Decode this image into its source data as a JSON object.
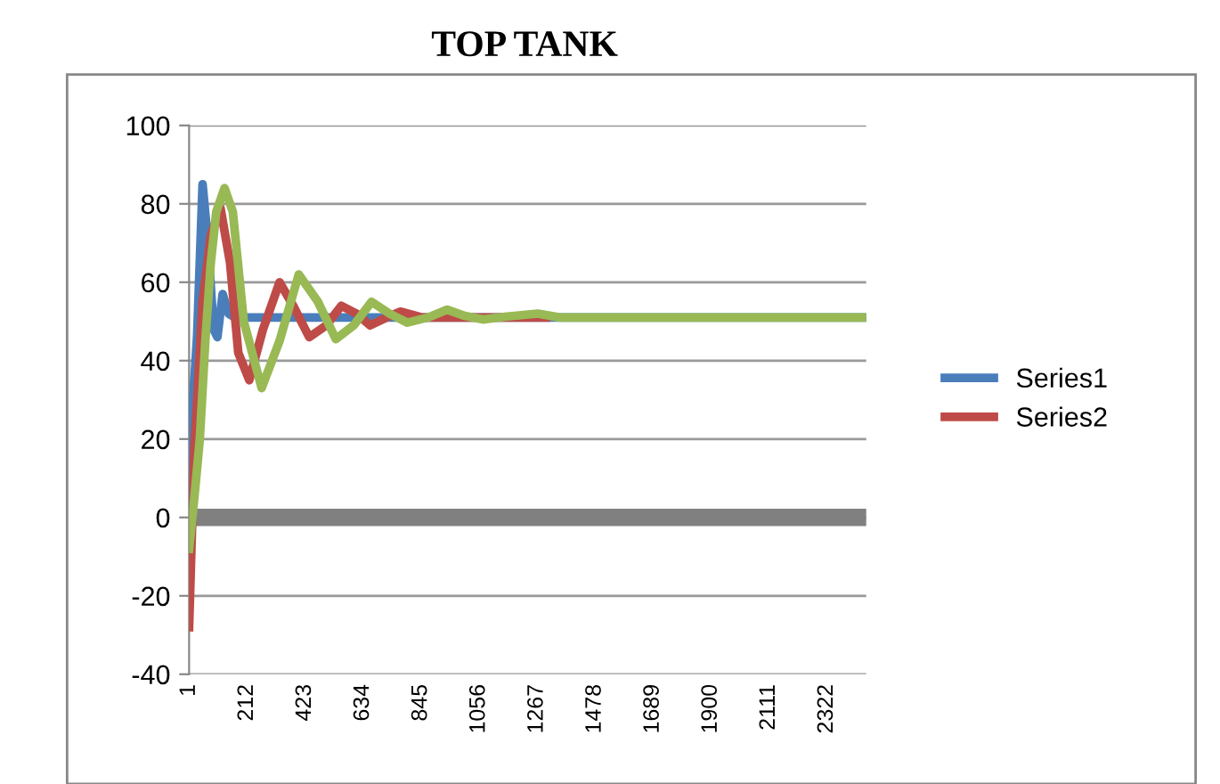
{
  "chart_data": {
    "type": "line",
    "title": "TOP TANK",
    "xlim": [
      1,
      2465
    ],
    "xticks": [
      1,
      212,
      423,
      634,
      845,
      1056,
      1267,
      1478,
      1689,
      1900,
      2111,
      2322
    ],
    "ylim": [
      -40,
      100
    ],
    "yticks": [
      -40,
      -20,
      0,
      20,
      40,
      60,
      80,
      100
    ],
    "grid": "y",
    "legend": "right",
    "marker": "none",
    "line_style": "solid",
    "ref_lines": [
      {
        "axis": "y",
        "value": 0,
        "color": "#808080"
      }
    ],
    "series": [
      {
        "name": "Series1",
        "color": "#4a7ebb",
        "x": [
          1,
          15,
          30,
          50,
          70,
          90,
          104,
          123,
          145,
          168,
          2465
        ],
        "values": [
          0,
          30,
          46,
          85,
          70,
          48,
          46,
          57,
          52,
          51,
          51
        ]
      },
      {
        "name": "Series2",
        "color": "#be4b48",
        "x": [
          1,
          20,
          50,
          80,
          115,
          150,
          180,
          220,
          270,
          330,
          380,
          438,
          500,
          555,
          610,
          660,
          720,
          770,
          850,
          1300
        ],
        "values": [
          -28,
          17,
          55,
          72,
          79,
          65,
          42,
          35,
          48,
          60,
          54,
          46,
          49,
          54,
          52,
          49,
          51,
          52.5,
          51,
          51
        ]
      },
      {
        "color": "#98b954",
        "x": [
          1,
          20,
          40,
          60,
          80,
          100,
          130,
          160,
          200,
          265,
          330,
          400,
          470,
          535,
          600,
          665,
          730,
          795,
          870,
          940,
          1000,
          1070,
          1150,
          1270,
          1350,
          2465
        ],
        "values": [
          -8,
          5,
          20,
          45,
          65,
          78,
          84,
          78,
          50,
          33,
          45,
          62,
          55,
          45.5,
          49,
          55,
          52,
          49.7,
          51,
          53,
          51.5,
          50.5,
          51.2,
          52,
          51,
          51
        ]
      }
    ]
  }
}
